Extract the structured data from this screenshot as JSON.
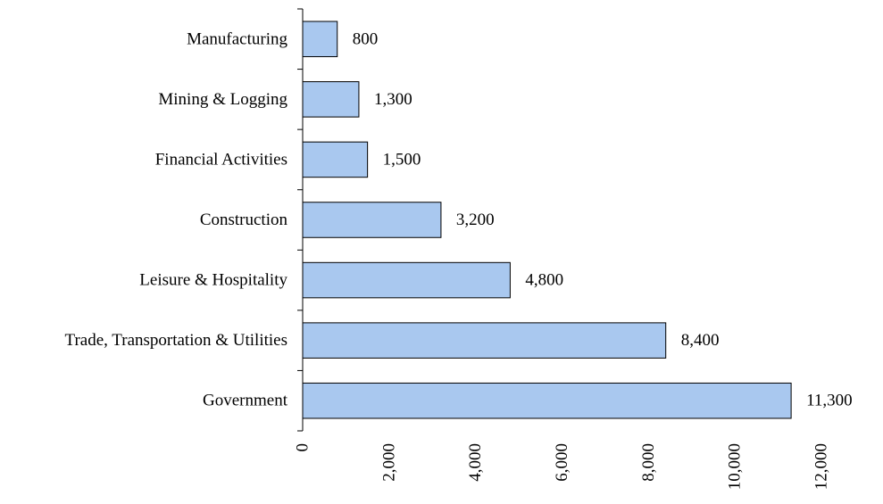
{
  "chart_data": {
    "type": "bar",
    "orientation": "horizontal",
    "title": "",
    "xlabel": "",
    "ylabel": "",
    "categories": [
      "Manufacturing",
      "Mining & Logging",
      "Financial Activities",
      "Construction",
      "Leisure & Hospitality",
      "Trade, Transportation & Utilities",
      "Government"
    ],
    "values": [
      800,
      1300,
      1500,
      3200,
      4800,
      8400,
      11300
    ],
    "value_labels": [
      "800",
      "1,300",
      "1,500",
      "3,200",
      "4,800",
      "8,400",
      "11,300"
    ],
    "xlim": [
      0,
      12000
    ],
    "xticks": [
      0,
      2000,
      4000,
      6000,
      8000,
      10000,
      12000
    ],
    "xtick_labels": [
      "0",
      "2,000",
      "4,000",
      "6,000",
      "8,000",
      "10,000",
      "12,000"
    ],
    "grid": false,
    "legend": "none",
    "bar_color": "#a9c8ef",
    "bar_edge_color": "#000000"
  }
}
